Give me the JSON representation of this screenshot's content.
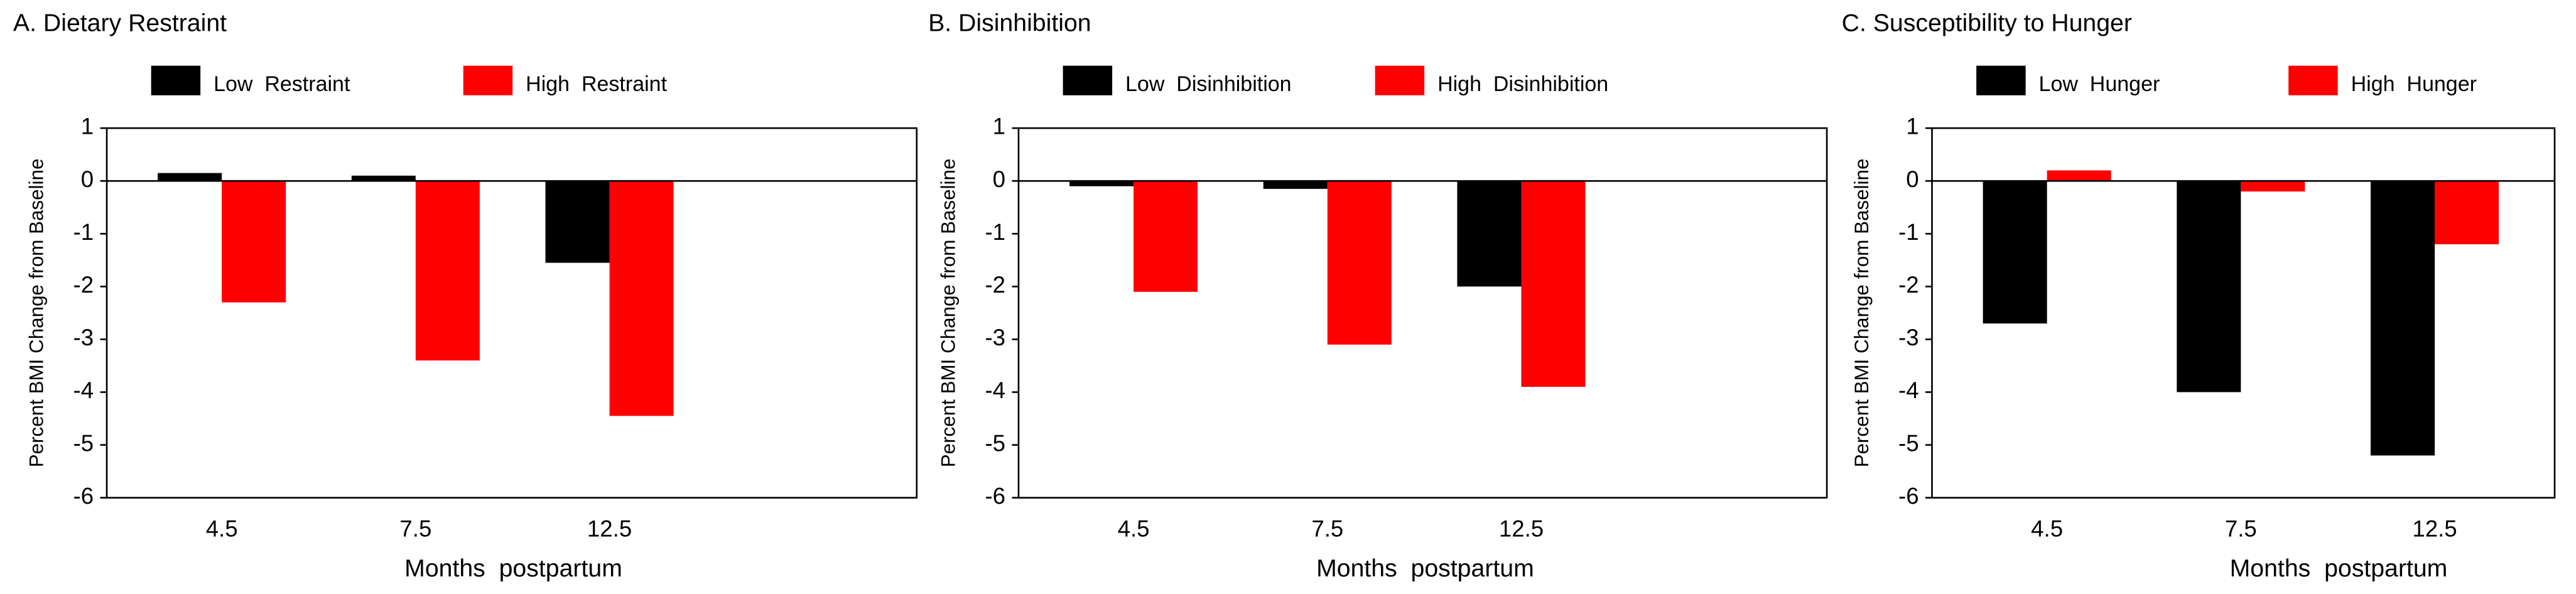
{
  "chart_data": [
    {
      "type": "bar",
      "title": "A. Dietary Restraint",
      "categories": [
        "4.5",
        "7.5",
        "12.5"
      ],
      "series": [
        {
          "name": "Low  Restraint",
          "color": "#000000",
          "values": [
            0.15,
            0.1,
            -1.55
          ]
        },
        {
          "name": "High  Restraint",
          "color": "#ff0000",
          "values": [
            -2.3,
            -3.4,
            -4.45
          ]
        }
      ],
      "ylim": [
        -6,
        1
      ],
      "yticks": [
        1,
        0,
        -1,
        -2,
        -3,
        -4,
        -5,
        -6
      ],
      "x_label": "Months  postpartum",
      "y_label": "Percent BMI Change from Baseline"
    },
    {
      "type": "bar",
      "title": "B. Disinhibition",
      "categories": [
        "4.5",
        "7.5",
        "12.5"
      ],
      "series": [
        {
          "name": "Low  Disinhibition",
          "color": "#000000",
          "values": [
            -0.1,
            -0.15,
            -2.0
          ]
        },
        {
          "name": "High  Disinhibition",
          "color": "#ff0000",
          "values": [
            -2.1,
            -3.1,
            -3.9
          ]
        }
      ],
      "ylim": [
        -6,
        1
      ],
      "yticks": [
        1,
        0,
        -1,
        -2,
        -3,
        -4,
        -5,
        -6
      ],
      "x_label": "Months  postpartum",
      "y_label": "Percent BMI Change from Baseline"
    },
    {
      "type": "bar",
      "title": "C. Susceptibility to Hunger",
      "categories": [
        "4.5",
        "7.5",
        "12.5"
      ],
      "series": [
        {
          "name": "Low  Hunger",
          "color": "#000000",
          "values": [
            -2.7,
            -4.0,
            -5.2
          ]
        },
        {
          "name": "High  Hunger",
          "color": "#ff0000",
          "values": [
            0.2,
            -0.2,
            -1.2
          ]
        }
      ],
      "ylim": [
        -6,
        1
      ],
      "yticks": [
        1,
        0,
        -1,
        -2,
        -3,
        -4,
        -5,
        -6
      ],
      "x_label": "Months  postpartum",
      "y_label": "Percent BMI Change from Baseline"
    }
  ]
}
